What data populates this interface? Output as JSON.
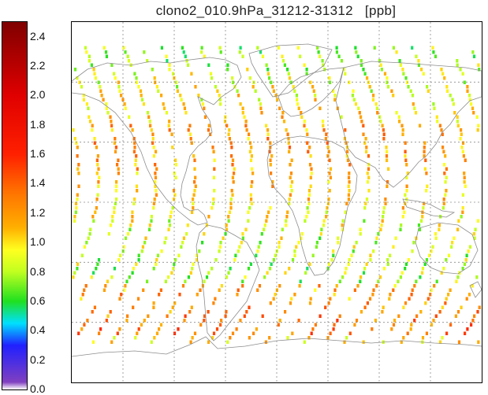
{
  "title": "clono2_010.9hPa_31212-31312   [ppb]",
  "colorbar": {
    "min": 0.0,
    "max": 2.5,
    "tick_labels": [
      "2.4",
      "2.2",
      "2.0",
      "1.8",
      "1.6",
      "1.4",
      "1.2",
      "1.0",
      "0.8",
      "0.6",
      "0.4",
      "0.2",
      "0.0"
    ],
    "tick_values": [
      2.4,
      2.2,
      2.0,
      1.8,
      1.6,
      1.4,
      1.2,
      1.0,
      0.8,
      0.6,
      0.4,
      0.2,
      0.0
    ],
    "stops": [
      {
        "v": 0.0,
        "c": "#ffffff"
      },
      {
        "v": 0.05,
        "c": "#8040c0"
      },
      {
        "v": 0.3,
        "c": "#2020ff"
      },
      {
        "v": 0.45,
        "c": "#00e0ff"
      },
      {
        "v": 0.6,
        "c": "#20e020"
      },
      {
        "v": 0.8,
        "c": "#c0ff20"
      },
      {
        "v": 0.95,
        "c": "#ffff20"
      },
      {
        "v": 1.1,
        "c": "#ffb000"
      },
      {
        "v": 1.35,
        "c": "#ff7000"
      },
      {
        "v": 1.6,
        "c": "#ff2000"
      },
      {
        "v": 2.0,
        "c": "#e00000"
      },
      {
        "v": 2.5,
        "c": "#800000"
      }
    ]
  },
  "map": {
    "lon_range": [
      -180,
      180
    ],
    "lat_range": [
      -90,
      90
    ],
    "grid_lons": [
      -135,
      -90,
      -45,
      0,
      45,
      90,
      135
    ],
    "grid_lats": [
      -60,
      -30,
      0,
      30,
      60
    ],
    "coverage_lat_range": [
      -70,
      78
    ],
    "colors": {
      "coast": "#8c8c8c",
      "grid": "#8c8c8c"
    }
  }
}
